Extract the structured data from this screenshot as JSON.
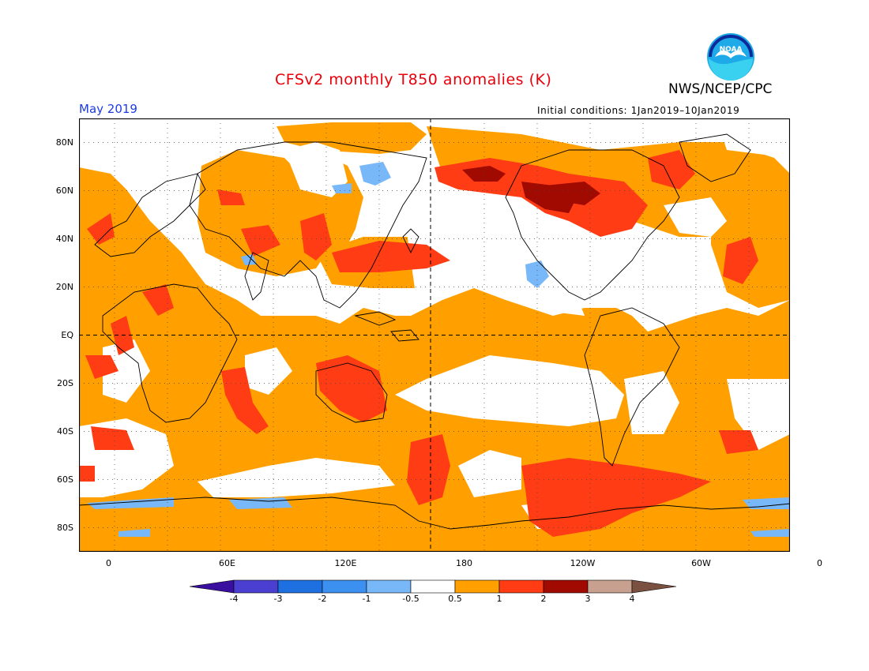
{
  "title": "CFSv2 monthly T850 anomalies (K)",
  "valid_month": "May 2019",
  "initial_conditions": "Initial conditions: 1Jan2019–10Jan2019",
  "agency": "NWS/NCEP/CPC",
  "logo": {
    "icon": "noaa-logo",
    "text": "NOAA"
  },
  "map": {
    "projection": "cylindrical-equidistant",
    "lon_range": [
      -15,
      345
    ],
    "lat_range": [
      -90,
      90
    ],
    "lat_labels": [
      "80N",
      "60N",
      "40N",
      "20N",
      "EQ",
      "20S",
      "40S",
      "60S",
      "80S"
    ],
    "lat_values": [
      80,
      60,
      40,
      20,
      0,
      -20,
      -40,
      -60,
      -80
    ],
    "lon_labels": [
      "0",
      "60E",
      "120E",
      "180",
      "120W",
      "60W",
      "0"
    ],
    "lon_values": [
      0,
      60,
      120,
      180,
      240,
      300,
      360
    ]
  },
  "colorbar": {
    "labels": [
      "-4",
      "-3",
      "-2",
      "-1",
      "-0.5",
      "0.5",
      "1",
      "2",
      "3",
      "4"
    ],
    "colors": [
      "#3a0fa0",
      "#4a3fd0",
      "#1e6fe0",
      "#3c90f0",
      "#78b8f8",
      "#ffffff",
      "#ffa000",
      "#ff3c14",
      "#a00a00",
      "#c8a090",
      "#7a5040"
    ]
  }
}
